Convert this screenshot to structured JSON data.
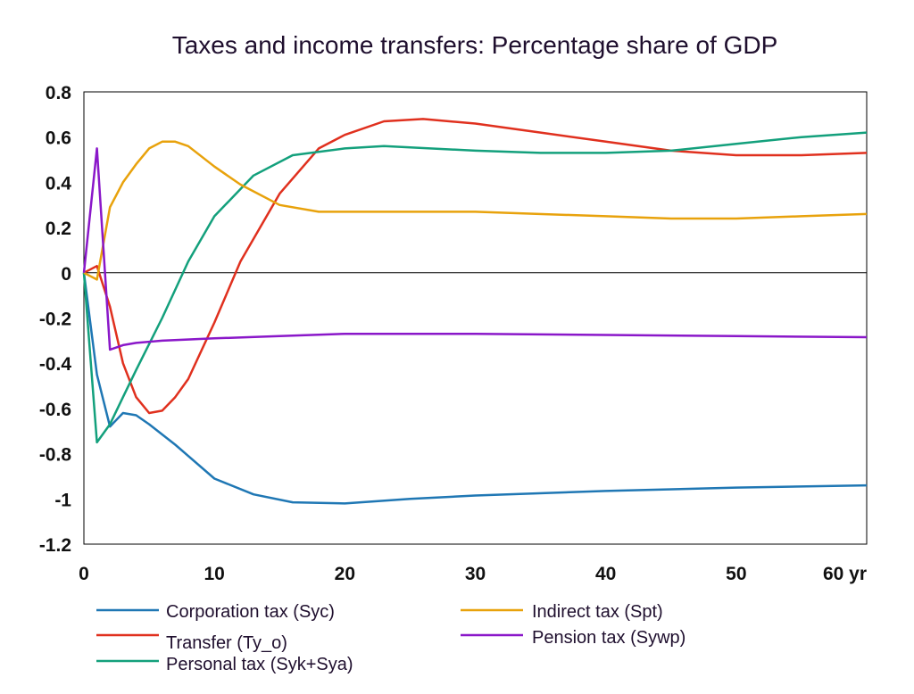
{
  "chart_data": {
    "type": "line",
    "title": "Taxes and income transfers: Percentage share of GDP",
    "xlabel": "",
    "ylabel": "",
    "xlim": [
      0,
      60
    ],
    "ylim": [
      -1.2,
      0.8
    ],
    "x_ticks": [
      0,
      10,
      20,
      30,
      40,
      50,
      60
    ],
    "x_tick_labels": [
      "0",
      "10",
      "20",
      "30",
      "40",
      "50",
      "60 yr"
    ],
    "y_ticks": [
      0.8,
      0.6,
      0.4,
      0.2,
      0,
      -0.2,
      -0.4,
      -0.6,
      -0.8,
      -1,
      -1.2
    ],
    "y_tick_labels": [
      "0.8",
      "0.6",
      "0.4",
      "0.2",
      "0",
      "-0.2",
      "-0.4",
      "-0.6",
      "-0.8",
      "-1",
      "-1.2"
    ],
    "grid": false,
    "legend_position": "bottom",
    "series": [
      {
        "name": "Corporation tax (Syc)",
        "color": "#1f77b4",
        "points": [
          [
            0,
            0
          ],
          [
            1,
            -0.45
          ],
          [
            2,
            -0.68
          ],
          [
            3,
            -0.62
          ],
          [
            4,
            -0.63
          ],
          [
            5,
            -0.67
          ],
          [
            7,
            -0.76
          ],
          [
            10,
            -0.91
          ],
          [
            13,
            -0.98
          ],
          [
            16,
            -1.015
          ],
          [
            20,
            -1.02
          ],
          [
            25,
            -1.0
          ],
          [
            30,
            -0.985
          ],
          [
            40,
            -0.965
          ],
          [
            50,
            -0.95
          ],
          [
            60,
            -0.94
          ]
        ]
      },
      {
        "name": "Transfer (Ty_o)",
        "color": "#e0301e",
        "points": [
          [
            0,
            0
          ],
          [
            1,
            0.03
          ],
          [
            2,
            -0.15
          ],
          [
            3,
            -0.4
          ],
          [
            4,
            -0.55
          ],
          [
            5,
            -0.62
          ],
          [
            6,
            -0.61
          ],
          [
            7,
            -0.55
          ],
          [
            8,
            -0.47
          ],
          [
            10,
            -0.22
          ],
          [
            12,
            0.05
          ],
          [
            15,
            0.35
          ],
          [
            18,
            0.55
          ],
          [
            20,
            0.61
          ],
          [
            23,
            0.67
          ],
          [
            26,
            0.68
          ],
          [
            30,
            0.66
          ],
          [
            35,
            0.62
          ],
          [
            40,
            0.58
          ],
          [
            45,
            0.54
          ],
          [
            50,
            0.52
          ],
          [
            55,
            0.52
          ],
          [
            60,
            0.53
          ]
        ]
      },
      {
        "name": "Personal tax (Syk+Sya)",
        "color": "#13a07c",
        "points": [
          [
            0,
            0
          ],
          [
            1,
            -0.75
          ],
          [
            2,
            -0.67
          ],
          [
            3,
            -0.55
          ],
          [
            4,
            -0.43
          ],
          [
            6,
            -0.2
          ],
          [
            8,
            0.05
          ],
          [
            10,
            0.25
          ],
          [
            13,
            0.43
          ],
          [
            16,
            0.52
          ],
          [
            20,
            0.55
          ],
          [
            23,
            0.56
          ],
          [
            30,
            0.54
          ],
          [
            35,
            0.53
          ],
          [
            40,
            0.53
          ],
          [
            45,
            0.54
          ],
          [
            50,
            0.57
          ],
          [
            55,
            0.6
          ],
          [
            60,
            0.62
          ]
        ]
      },
      {
        "name": "Indirect tax (Spt)",
        "color": "#e8a20c",
        "points": [
          [
            0,
            0
          ],
          [
            1,
            -0.03
          ],
          [
            2,
            0.29
          ],
          [
            3,
            0.4
          ],
          [
            4,
            0.48
          ],
          [
            5,
            0.55
          ],
          [
            6,
            0.58
          ],
          [
            7,
            0.58
          ],
          [
            8,
            0.56
          ],
          [
            10,
            0.47
          ],
          [
            12,
            0.39
          ],
          [
            15,
            0.3
          ],
          [
            18,
            0.27
          ],
          [
            20,
            0.27
          ],
          [
            25,
            0.27
          ],
          [
            30,
            0.27
          ],
          [
            40,
            0.25
          ],
          [
            45,
            0.24
          ],
          [
            50,
            0.24
          ],
          [
            55,
            0.25
          ],
          [
            60,
            0.26
          ]
        ]
      },
      {
        "name": "Pension tax (Sywp)",
        "color": "#8a17c9",
        "points": [
          [
            0,
            0
          ],
          [
            1,
            0.55
          ],
          [
            2,
            -0.34
          ],
          [
            3,
            -0.32
          ],
          [
            4,
            -0.31
          ],
          [
            6,
            -0.3
          ],
          [
            10,
            -0.29
          ],
          [
            15,
            -0.28
          ],
          [
            20,
            -0.27
          ],
          [
            30,
            -0.27
          ],
          [
            40,
            -0.275
          ],
          [
            50,
            -0.28
          ],
          [
            60,
            -0.285
          ]
        ]
      }
    ]
  }
}
